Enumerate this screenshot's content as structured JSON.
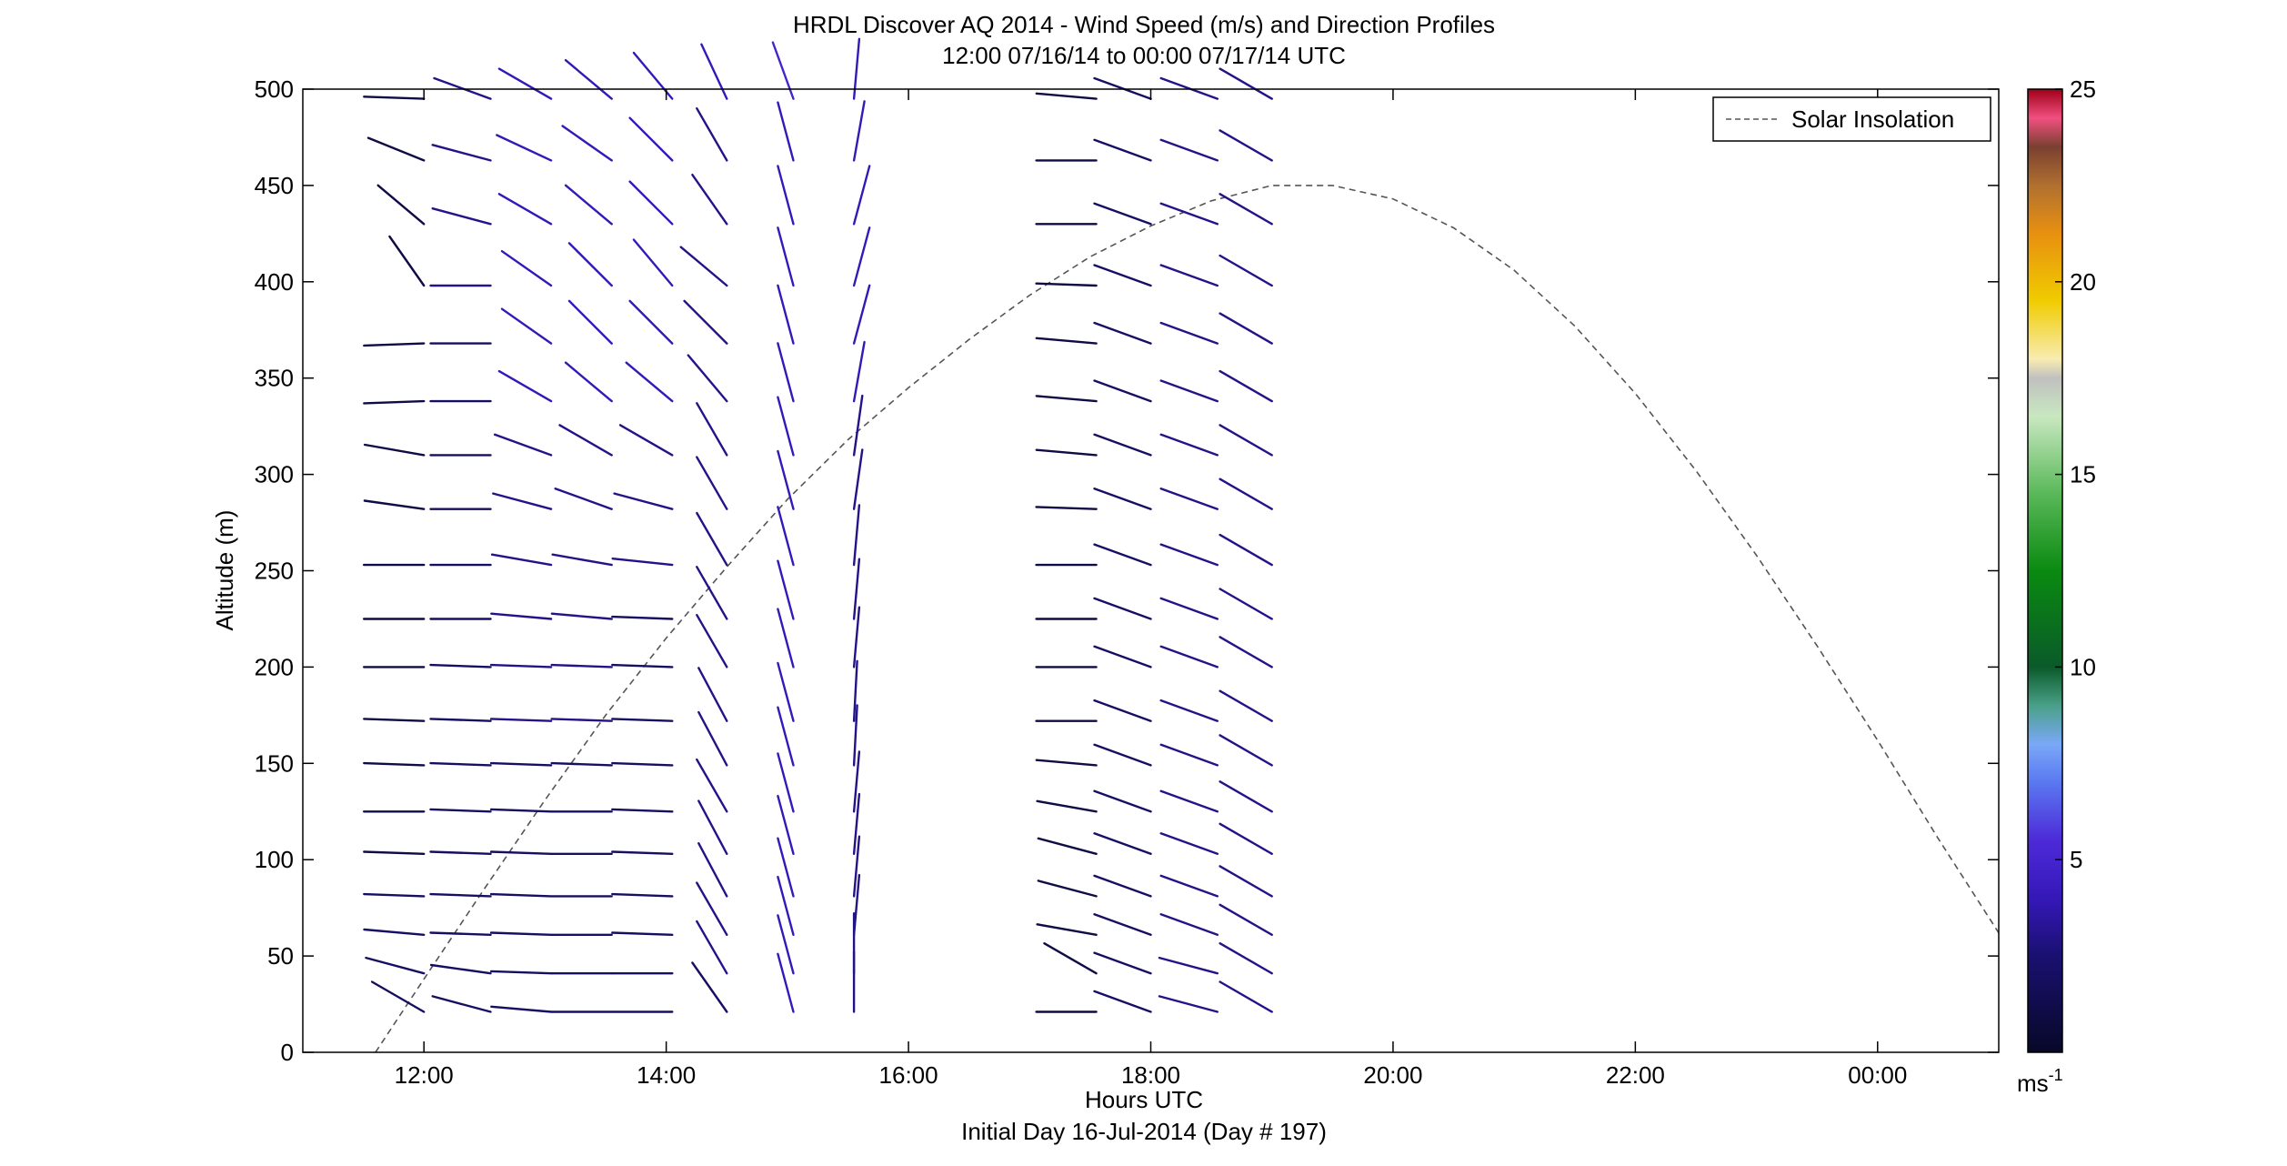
{
  "chart_data": {
    "type": "wind-barb-profile",
    "title": "HRDL Discover AQ 2014 - Wind Speed (m/s) and Direction Profiles",
    "subtitle": "12:00 07/16/14 to 00:00 07/17/14  UTC",
    "xlabel": "Hours UTC",
    "xlabel2": "Initial Day 16-Jul-2014 (Day # 197)",
    "ylabel": "Altitude (m)",
    "xlim": [
      11.0,
      25.0
    ],
    "ylim": [
      0,
      500
    ],
    "x_ticks": [
      12,
      14,
      16,
      18,
      20,
      22,
      24
    ],
    "x_tick_labels": [
      "12:00",
      "14:00",
      "16:00",
      "18:00",
      "20:00",
      "22:00",
      "00:00"
    ],
    "y_ticks": [
      0,
      50,
      100,
      150,
      200,
      250,
      300,
      350,
      400,
      450,
      500
    ],
    "y_tick_labels": [
      "0",
      "50",
      "100",
      "150",
      "200",
      "250",
      "300",
      "350",
      "400",
      "450",
      "500"
    ],
    "legend": {
      "entries": [
        "Solar Insolation"
      ],
      "location": "top-right"
    },
    "colorbar": {
      "unit": "ms",
      "unit_exp": "-1",
      "range": [
        0,
        25
      ],
      "ticks": [
        5,
        10,
        15,
        20,
        25
      ],
      "tick_labels": [
        "5",
        "10",
        "15",
        "20",
        "25"
      ]
    },
    "colors": {
      "axis": "#000000",
      "solar": "#555555",
      "colormap": [
        [
          0.0,
          "#080828"
        ],
        [
          0.1,
          "#1a1070"
        ],
        [
          0.16,
          "#3518b8"
        ],
        [
          0.22,
          "#4d2ad8"
        ],
        [
          0.28,
          "#5a78f0"
        ],
        [
          0.32,
          "#7aa8f8"
        ],
        [
          0.36,
          "#4aa088"
        ],
        [
          0.4,
          "#0a5a2a"
        ],
        [
          0.5,
          "#0a8a10"
        ],
        [
          0.58,
          "#5ab85a"
        ],
        [
          0.66,
          "#c8e8c0"
        ],
        [
          0.7,
          "#c0c0c0"
        ],
        [
          0.72,
          "#f8ecb0"
        ],
        [
          0.78,
          "#f0cc00"
        ],
        [
          0.85,
          "#e89010"
        ],
        [
          0.9,
          "#b07030"
        ],
        [
          0.94,
          "#7a4030"
        ],
        [
          0.97,
          "#f05080"
        ],
        [
          1.0,
          "#a00018"
        ]
      ]
    },
    "solar_insolation": {
      "name": "Solar Insolation",
      "x": [
        11.6,
        12.0,
        12.5,
        13.0,
        13.5,
        14.0,
        14.5,
        15.0,
        15.5,
        16.0,
        16.5,
        17.0,
        17.5,
        18.0,
        18.5,
        19.0,
        19.5,
        20.0,
        20.5,
        21.0,
        21.5,
        22.0,
        22.5,
        23.0,
        23.5,
        24.0,
        24.5,
        25.0
      ],
      "y": [
        0,
        38,
        85,
        131,
        175,
        215,
        252,
        287,
        318,
        345,
        370,
        393,
        413,
        429,
        442,
        450,
        450,
        443,
        428,
        406,
        377,
        342,
        302,
        258,
        211,
        162,
        111,
        62
      ]
    },
    "profile_altitudes": [
      21,
      41,
      61,
      81,
      103,
      125,
      149,
      172,
      200,
      225,
      253,
      282,
      310,
      338,
      368,
      398,
      430,
      463,
      495
    ],
    "profiles": [
      {
        "time": 12.0,
        "dir": [
          300,
          285,
          275,
          272,
          272,
          270,
          272,
          272,
          270,
          270,
          270,
          278,
          280,
          268,
          268,
          325,
          310,
          292,
          272
        ],
        "spd": [
          2,
          2,
          2,
          2,
          1,
          1,
          1,
          1,
          1,
          1,
          1,
          1,
          1,
          1,
          1,
          1,
          1,
          1,
          1
        ]
      },
      {
        "time": 12.55,
        "dir": [
          285,
          278,
          272,
          272,
          272,
          272,
          272,
          272,
          272,
          270,
          270,
          270,
          270,
          270,
          270,
          270,
          285,
          285,
          290
        ],
        "spd": [
          2,
          2,
          2,
          2,
          2,
          2,
          2,
          2,
          2,
          2,
          2,
          2,
          2,
          2,
          2,
          3,
          3,
          3,
          3
        ]
      },
      {
        "time": 13.05,
        "dir": [
          275,
          272,
          272,
          272,
          272,
          272,
          272,
          272,
          272,
          275,
          280,
          285,
          290,
          300,
          305,
          305,
          300,
          295,
          300
        ],
        "spd": [
          2,
          2,
          2,
          2,
          2,
          2,
          2,
          3,
          3,
          3,
          3,
          3,
          3,
          4,
          4,
          4,
          4,
          4,
          4
        ]
      },
      {
        "time": 13.55,
        "dir": [
          270,
          270,
          270,
          270,
          270,
          270,
          272,
          272,
          272,
          275,
          280,
          290,
          300,
          310,
          315,
          315,
          310,
          305,
          310
        ],
        "spd": [
          2,
          2,
          2,
          2,
          2,
          2,
          2,
          3,
          3,
          3,
          3,
          3,
          3,
          4,
          4,
          4,
          4,
          4,
          4
        ]
      },
      {
        "time": 14.05,
        "dir": [
          270,
          270,
          272,
          272,
          272,
          272,
          272,
          272,
          272,
          272,
          276,
          285,
          300,
          310,
          315,
          320,
          315,
          315,
          320
        ],
        "spd": [
          2,
          2,
          2,
          2,
          2,
          2,
          2,
          2,
          2,
          2,
          3,
          3,
          3,
          4,
          4,
          4,
          4,
          4,
          4
        ]
      },
      {
        "time": 14.5,
        "dir": [
          325,
          330,
          330,
          332,
          332,
          330,
          332,
          332,
          330,
          330,
          330,
          330,
          330,
          320,
          315,
          310,
          325,
          330,
          335
        ],
        "spd": [
          2,
          3,
          3,
          3,
          3,
          3,
          3,
          3,
          3,
          3,
          3,
          3,
          3,
          3,
          3,
          3,
          3,
          3,
          4
        ]
      },
      {
        "time": 15.05,
        "dir": [
          345,
          345,
          345,
          345,
          345,
          345,
          345,
          345,
          345,
          345,
          345,
          345,
          345,
          345,
          345,
          345,
          345,
          345,
          340
        ],
        "spd": [
          4,
          4,
          4,
          4,
          4,
          4,
          4,
          4,
          4,
          4,
          4,
          4,
          4,
          4,
          4,
          4,
          4,
          4,
          5
        ]
      },
      {
        "time": 15.55,
        "dir": [
          0,
          0,
          5,
          5,
          5,
          5,
          3,
          3,
          5,
          5,
          5,
          8,
          8,
          10,
          15,
          15,
          15,
          10,
          5
        ],
        "spd": [
          3,
          3,
          3,
          3,
          3,
          3,
          3,
          3,
          3,
          3,
          3,
          3,
          3,
          4,
          4,
          4,
          4,
          4,
          4
        ]
      },
      {
        "time": 16.95,
        "dir": [],
        "spd": []
      },
      {
        "time": 17.55,
        "dir": [
          270,
          300,
          280,
          285,
          285,
          280,
          275,
          270,
          270,
          270,
          270,
          272,
          275,
          275,
          275,
          272,
          270,
          270,
          275
        ],
        "spd": [
          1,
          1,
          1,
          1,
          1,
          1,
          1,
          1,
          1,
          1,
          1,
          1,
          1,
          1,
          1,
          1,
          1,
          1,
          1
        ]
      },
      {
        "time": 18.0,
        "dir": [
          290,
          290,
          290,
          290,
          290,
          290,
          290,
          290,
          290,
          290,
          290,
          290,
          290,
          290,
          290,
          290,
          290,
          290,
          290
        ],
        "spd": [
          2,
          2,
          2,
          2,
          2,
          2,
          2,
          2,
          2,
          2,
          2,
          2,
          2,
          2,
          2,
          2,
          2,
          2,
          2
        ]
      },
      {
        "time": 18.55,
        "dir": [
          285,
          285,
          290,
          290,
          290,
          290,
          290,
          290,
          290,
          290,
          290,
          290,
          290,
          290,
          290,
          290,
          290,
          290,
          290
        ],
        "spd": [
          3,
          3,
          3,
          3,
          3,
          3,
          3,
          3,
          3,
          3,
          3,
          3,
          3,
          3,
          3,
          3,
          3,
          3,
          3
        ]
      },
      {
        "time": 19.0,
        "dir": [
          300,
          300,
          300,
          300,
          300,
          300,
          300,
          300,
          300,
          300,
          300,
          300,
          300,
          300,
          300,
          300,
          300,
          300,
          300
        ],
        "spd": [
          3,
          3,
          3,
          3,
          3,
          3,
          3,
          3,
          3,
          3,
          3,
          3,
          3,
          3,
          3,
          3,
          3,
          3,
          3
        ]
      }
    ]
  }
}
